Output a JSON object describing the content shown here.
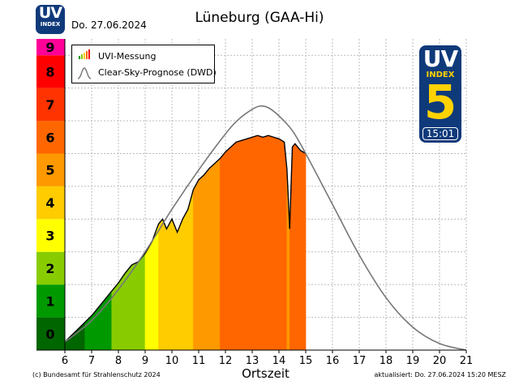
{
  "header": {
    "logo_text": "UV",
    "logo_subtext": "INDEX",
    "date": "Do. 27.06.2024",
    "title": "Lüneburg (GAA-Hi)"
  },
  "badge": {
    "text": "UV",
    "subtext": "INDEX",
    "value": "5",
    "time": "15:01",
    "color": "#ffd200",
    "background": "#0f3a7a"
  },
  "legend": {
    "placement": "top-left",
    "items": [
      {
        "label": "UVI-Messung",
        "icon": "bar-chart-icon"
      },
      {
        "label": "Clear-Sky-Prognose (DWD)",
        "icon": "bell-curve-icon"
      }
    ]
  },
  "footer": {
    "copyright": "(c) Bundesamt für Strahlenschutz 2024",
    "updated": "aktualisiert: Do. 27.06.2024  15:20  MESZ"
  },
  "chart_data": {
    "type": "area",
    "title": "Lüneburg (GAA-Hi)",
    "xlabel": "Ortszeit",
    "ylabel": "",
    "xlim": [
      5,
      21
    ],
    "ylim": [
      0,
      10
    ],
    "x_ticks": [
      6,
      7,
      8,
      9,
      10,
      11,
      12,
      13,
      14,
      15,
      16,
      17,
      18,
      19,
      20,
      21
    ],
    "y_ticks": [
      0,
      1,
      2,
      3,
      4,
      5,
      6,
      7,
      8,
      9
    ],
    "grid": true,
    "uv_index_colors": [
      "#006600",
      "#009900",
      "#88cc00",
      "#ffff00",
      "#ffcc00",
      "#ff9900",
      "#ff6600",
      "#ff3300",
      "#ff0000",
      "#ff0099"
    ],
    "series": [
      {
        "name": "UVI-Messung",
        "x": [
          6.0,
          6.25,
          6.5,
          6.75,
          7.0,
          7.25,
          7.5,
          7.75,
          8.0,
          8.25,
          8.5,
          8.75,
          9.0,
          9.25,
          9.5,
          9.65,
          9.8,
          10.0,
          10.2,
          10.4,
          10.6,
          10.8,
          11.0,
          11.2,
          11.4,
          11.6,
          11.8,
          12.0,
          12.2,
          12.4,
          12.6,
          12.8,
          13.0,
          13.2,
          13.4,
          13.6,
          13.8,
          14.0,
          14.2,
          14.3,
          14.4,
          14.5,
          14.6,
          14.8,
          15.0
        ],
        "y": [
          0.25,
          0.45,
          0.65,
          0.85,
          1.05,
          1.3,
          1.55,
          1.8,
          2.05,
          2.35,
          2.6,
          2.7,
          2.95,
          3.3,
          3.85,
          4.0,
          3.7,
          4.0,
          3.6,
          4.0,
          4.3,
          4.9,
          5.2,
          5.35,
          5.55,
          5.7,
          5.85,
          6.05,
          6.2,
          6.35,
          6.4,
          6.45,
          6.5,
          6.55,
          6.5,
          6.55,
          6.5,
          6.45,
          6.35,
          5.5,
          3.7,
          6.2,
          6.3,
          6.1,
          6.0
        ]
      },
      {
        "name": "Clear-Sky-Prognose (DWD)",
        "x": [
          6.0,
          7.0,
          8.0,
          9.0,
          10.0,
          11.0,
          12.0,
          12.5,
          13.0,
          13.3,
          13.6,
          14.0,
          14.5,
          15.0,
          16.0,
          17.0,
          18.0,
          19.0,
          20.0,
          21.0
        ],
        "y": [
          0.25,
          0.9,
          1.85,
          3.0,
          4.3,
          5.5,
          6.6,
          7.05,
          7.35,
          7.45,
          7.4,
          7.15,
          6.7,
          6.0,
          4.45,
          2.9,
          1.6,
          0.7,
          0.2,
          0.0
        ]
      }
    ]
  }
}
